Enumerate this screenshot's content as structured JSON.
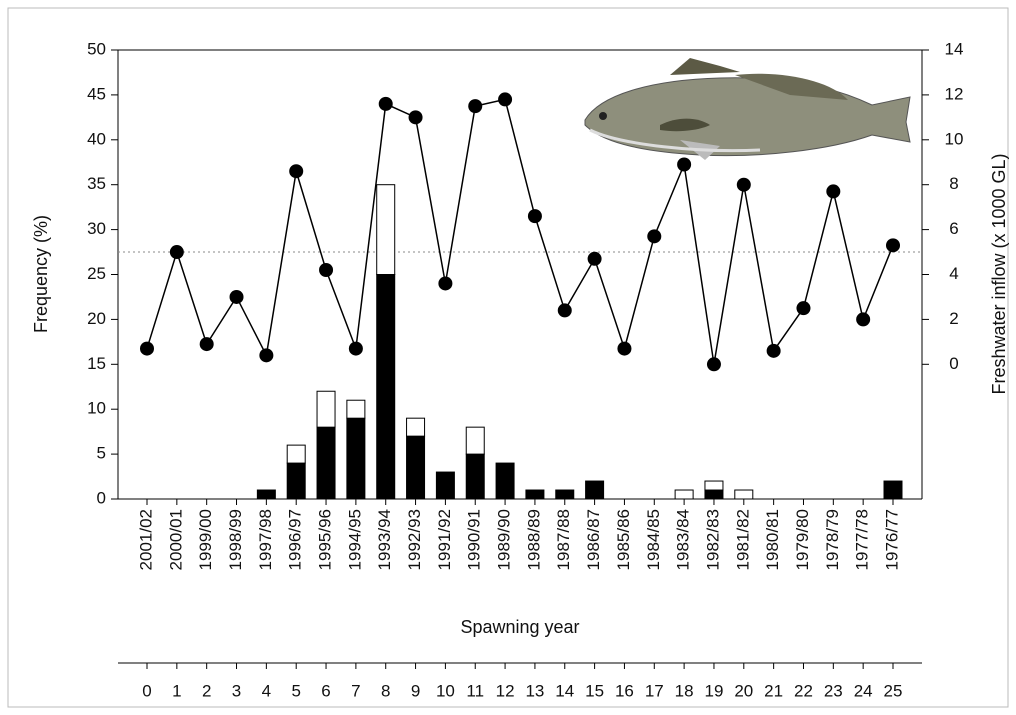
{
  "chart_data": {
    "type": "bar",
    "categories": [
      "2001/02",
      "2000/01",
      "1999/00",
      "1998/99",
      "1997/98",
      "1996/97",
      "1995/96",
      "1994/95",
      "1993/94",
      "1992/93",
      "1991/92",
      "1990/91",
      "1989/90",
      "1988/89",
      "1987/88",
      "1986/87",
      "1985/86",
      "1984/85",
      "1983/84",
      "1982/83",
      "1981/82",
      "1980/81",
      "1979/80",
      "1978/79",
      "1977/78",
      "1976/77"
    ],
    "x2_categories": [
      0,
      1,
      2,
      3,
      4,
      5,
      6,
      7,
      8,
      9,
      10,
      11,
      12,
      13,
      14,
      15,
      16,
      17,
      18,
      19,
      20,
      21,
      22,
      23,
      24,
      25
    ],
    "x_label": "Spawning year",
    "y_label": "Frequency (%)",
    "y2_label": "Freshwater inflow (x 1000 GL)",
    "ylim": [
      0,
      50
    ],
    "yticks": [
      0,
      5,
      10,
      15,
      20,
      25,
      30,
      35,
      40,
      45,
      50
    ],
    "y2lim": [
      -6,
      14
    ],
    "y2ticks": [
      0,
      2,
      4,
      6,
      8,
      10,
      12,
      14
    ],
    "y2_reference": 5,
    "series": [
      {
        "type": "bar",
        "color": "#000000",
        "values": [
          0,
          0,
          0,
          0,
          1,
          4,
          8,
          9,
          25,
          7,
          3,
          5,
          4,
          1,
          1,
          2,
          0,
          0,
          0,
          1,
          0,
          0,
          0,
          0,
          0,
          2
        ]
      },
      {
        "type": "bar",
        "color": "#ffffff",
        "values": [
          0,
          0,
          0,
          0,
          0,
          2,
          4,
          2,
          10,
          2,
          0,
          3,
          0,
          0,
          0,
          0,
          0,
          0,
          1,
          1,
          1,
          0,
          0,
          0,
          0,
          0
        ]
      },
      {
        "type": "line",
        "axis": "y2",
        "color": "#000000",
        "values": [
          0.7,
          5.0,
          0.9,
          3.0,
          0.4,
          8.6,
          4.2,
          0.7,
          11.6,
          11.0,
          3.6,
          11.5,
          11.8,
          6.6,
          2.4,
          4.7,
          0.7,
          5.7,
          8.9,
          0,
          8.0,
          0.6,
          2.5,
          7.7,
          2.0,
          5.3
        ]
      }
    ]
  }
}
